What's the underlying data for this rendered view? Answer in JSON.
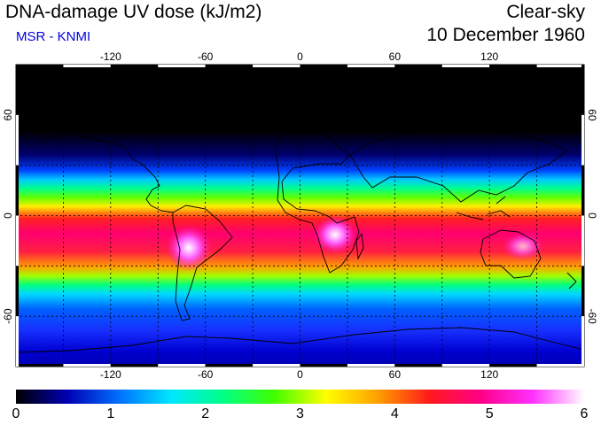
{
  "header": {
    "title": "DNA-damage UV dose (kJ/m2)",
    "source": "MSR - KNMI",
    "sky_condition": "Clear-sky",
    "date": "10 December 1960"
  },
  "map": {
    "projection": "equirectangular",
    "lon_range": [
      -180,
      180
    ],
    "lat_range": [
      -90,
      90
    ],
    "grid_step_lon": 30,
    "grid_step_lat": 30,
    "lon_tick_labels": [
      "-120",
      "-60",
      "0",
      "60",
      "120"
    ],
    "lat_tick_labels": [
      "60",
      "0",
      "-60"
    ],
    "colors": {
      "frame": "#000000",
      "coast": "#000000",
      "grid": "#000000"
    }
  },
  "colorbar": {
    "min": 0,
    "max": 6,
    "labels": [
      "0",
      "1",
      "2",
      "3",
      "4",
      "5",
      "6"
    ],
    "stops": [
      "#000000",
      "#0000b4",
      "#0070ff",
      "#00e8ff",
      "#00ff88",
      "#40ff00",
      "#ffff00",
      "#ffa000",
      "#ff1a1a",
      "#ff0088",
      "#ff30ff",
      "#ffffff"
    ]
  }
}
